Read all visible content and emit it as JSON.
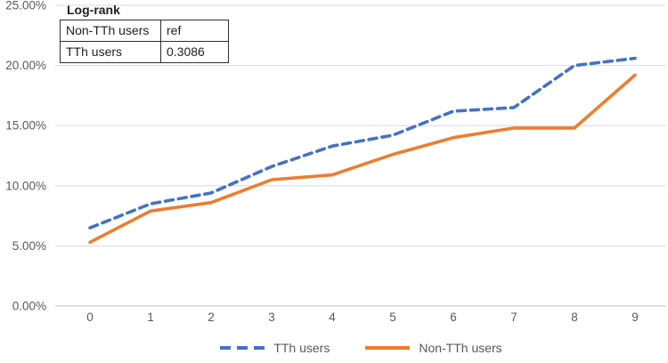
{
  "chart_data": {
    "type": "line",
    "title": "",
    "x": [
      0,
      1,
      2,
      3,
      4,
      5,
      6,
      7,
      8,
      9
    ],
    "x_tick_labels": [
      "0",
      "1",
      "2",
      "3",
      "4",
      "5",
      "6",
      "7",
      "8",
      "9"
    ],
    "y_tick_labels": [
      "0.00%",
      "5.00%",
      "10.00%",
      "15.00%",
      "20.00%",
      "25.00%"
    ],
    "y_tick_step": 5,
    "ylim": [
      0,
      25
    ],
    "grid": true,
    "legend_position": "bottom",
    "series": [
      {
        "name": "TTh users",
        "style": "dashed",
        "color": "#4472C4",
        "values": [
          6.5,
          8.5,
          9.4,
          11.6,
          13.3,
          14.2,
          16.2,
          16.5,
          20.0,
          20.6
        ]
      },
      {
        "name": "Non-TTh users",
        "style": "solid",
        "color": "#ED7D31",
        "values": [
          5.3,
          7.9,
          8.6,
          10.5,
          10.9,
          12.6,
          14.0,
          14.8,
          14.8,
          19.2
        ]
      }
    ]
  },
  "annotation_table": {
    "title": "Log-rank",
    "rows": [
      [
        "Non-TTh users",
        "ref"
      ],
      [
        "TTh users",
        "0.3086"
      ]
    ]
  },
  "colors": {
    "gridline": "#D9D9D9",
    "axis_line": "#BFBFBF",
    "axis_text": "#595959",
    "table_border": "#2e2e2e",
    "series_blue": "#4472C4",
    "series_orange": "#ED7D31"
  }
}
